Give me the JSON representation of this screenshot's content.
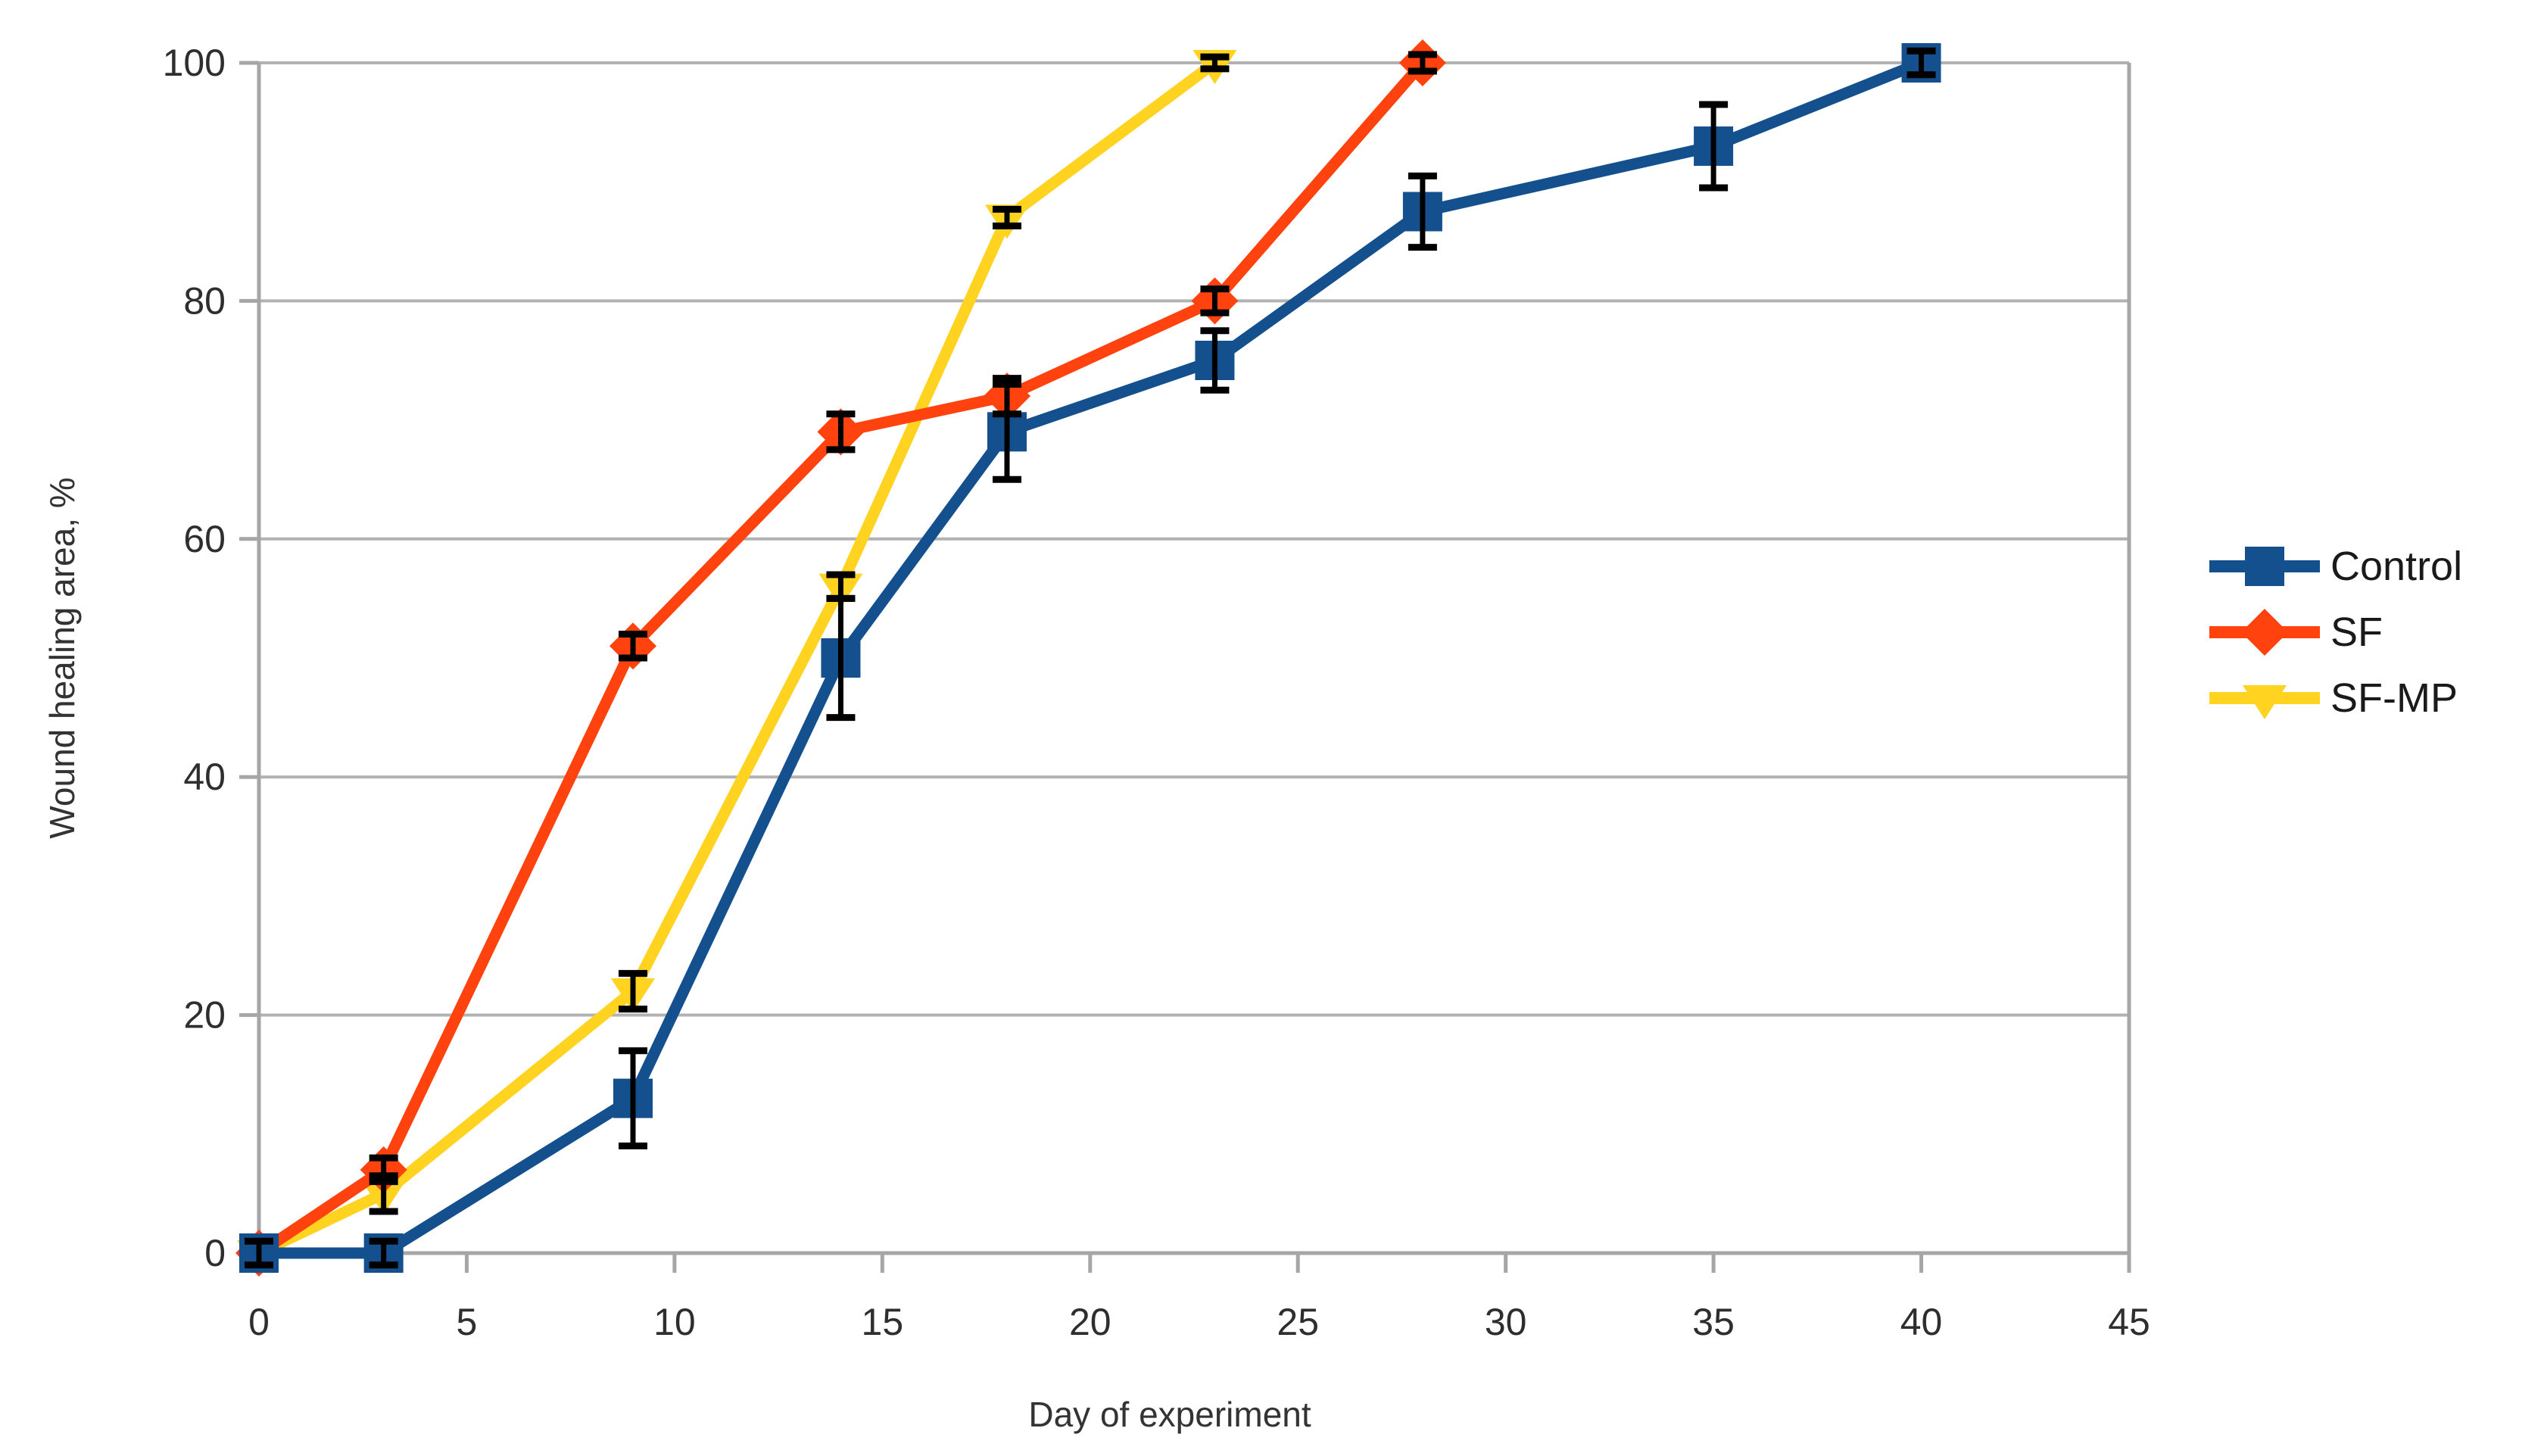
{
  "chart_data": {
    "type": "line",
    "title": "",
    "xlabel": "Day of experiment",
    "ylabel": "Wound healing area, %",
    "xlim": [
      0,
      45
    ],
    "ylim": [
      0,
      100
    ],
    "x_ticks": [
      0,
      5,
      10,
      15,
      20,
      25,
      30,
      35,
      40,
      45
    ],
    "y_ticks": [
      0,
      20,
      40,
      60,
      80,
      100
    ],
    "grid": "horizontal-only",
    "legend_position": "right",
    "error_bars": true,
    "series": [
      {
        "name": "Control",
        "marker": "square",
        "color": "#14508E",
        "x": [
          0,
          3,
          9,
          14,
          18,
          23,
          28,
          35,
          40
        ],
        "y": [
          0,
          0,
          13,
          50,
          69,
          75,
          87.5,
          93,
          100
        ],
        "yerr": [
          1,
          1,
          4,
          5,
          4,
          2.5,
          3,
          3.5,
          1
        ]
      },
      {
        "name": "SF",
        "marker": "diamond",
        "color": "#FF420E",
        "x": [
          0,
          3,
          9,
          14,
          18,
          23,
          28
        ],
        "y": [
          0,
          7,
          51,
          69,
          72,
          80,
          100
        ],
        "yerr": [
          0,
          1,
          1,
          1.5,
          1.5,
          1,
          0.7
        ]
      },
      {
        "name": "SF-MP",
        "marker": "triangle-down",
        "color": "#FFD320",
        "x": [
          0,
          3,
          9,
          14,
          18,
          23
        ],
        "y": [
          0,
          5,
          22,
          56,
          87,
          100
        ],
        "yerr": [
          0,
          1.5,
          1.5,
          1,
          0.7,
          0.5
        ]
      }
    ]
  },
  "colors": {
    "background": "#ffffff",
    "gridline": "#b2b2b2",
    "axis": "#a6a6a6",
    "tick_text": "#2e2e2e",
    "axis_title_text": "#333333",
    "legend_text": "#1a1a1a",
    "error_bar": "#000000"
  },
  "legend": {
    "items": [
      {
        "label": "Control"
      },
      {
        "label": "SF"
      },
      {
        "label": "SF-MP"
      }
    ]
  }
}
